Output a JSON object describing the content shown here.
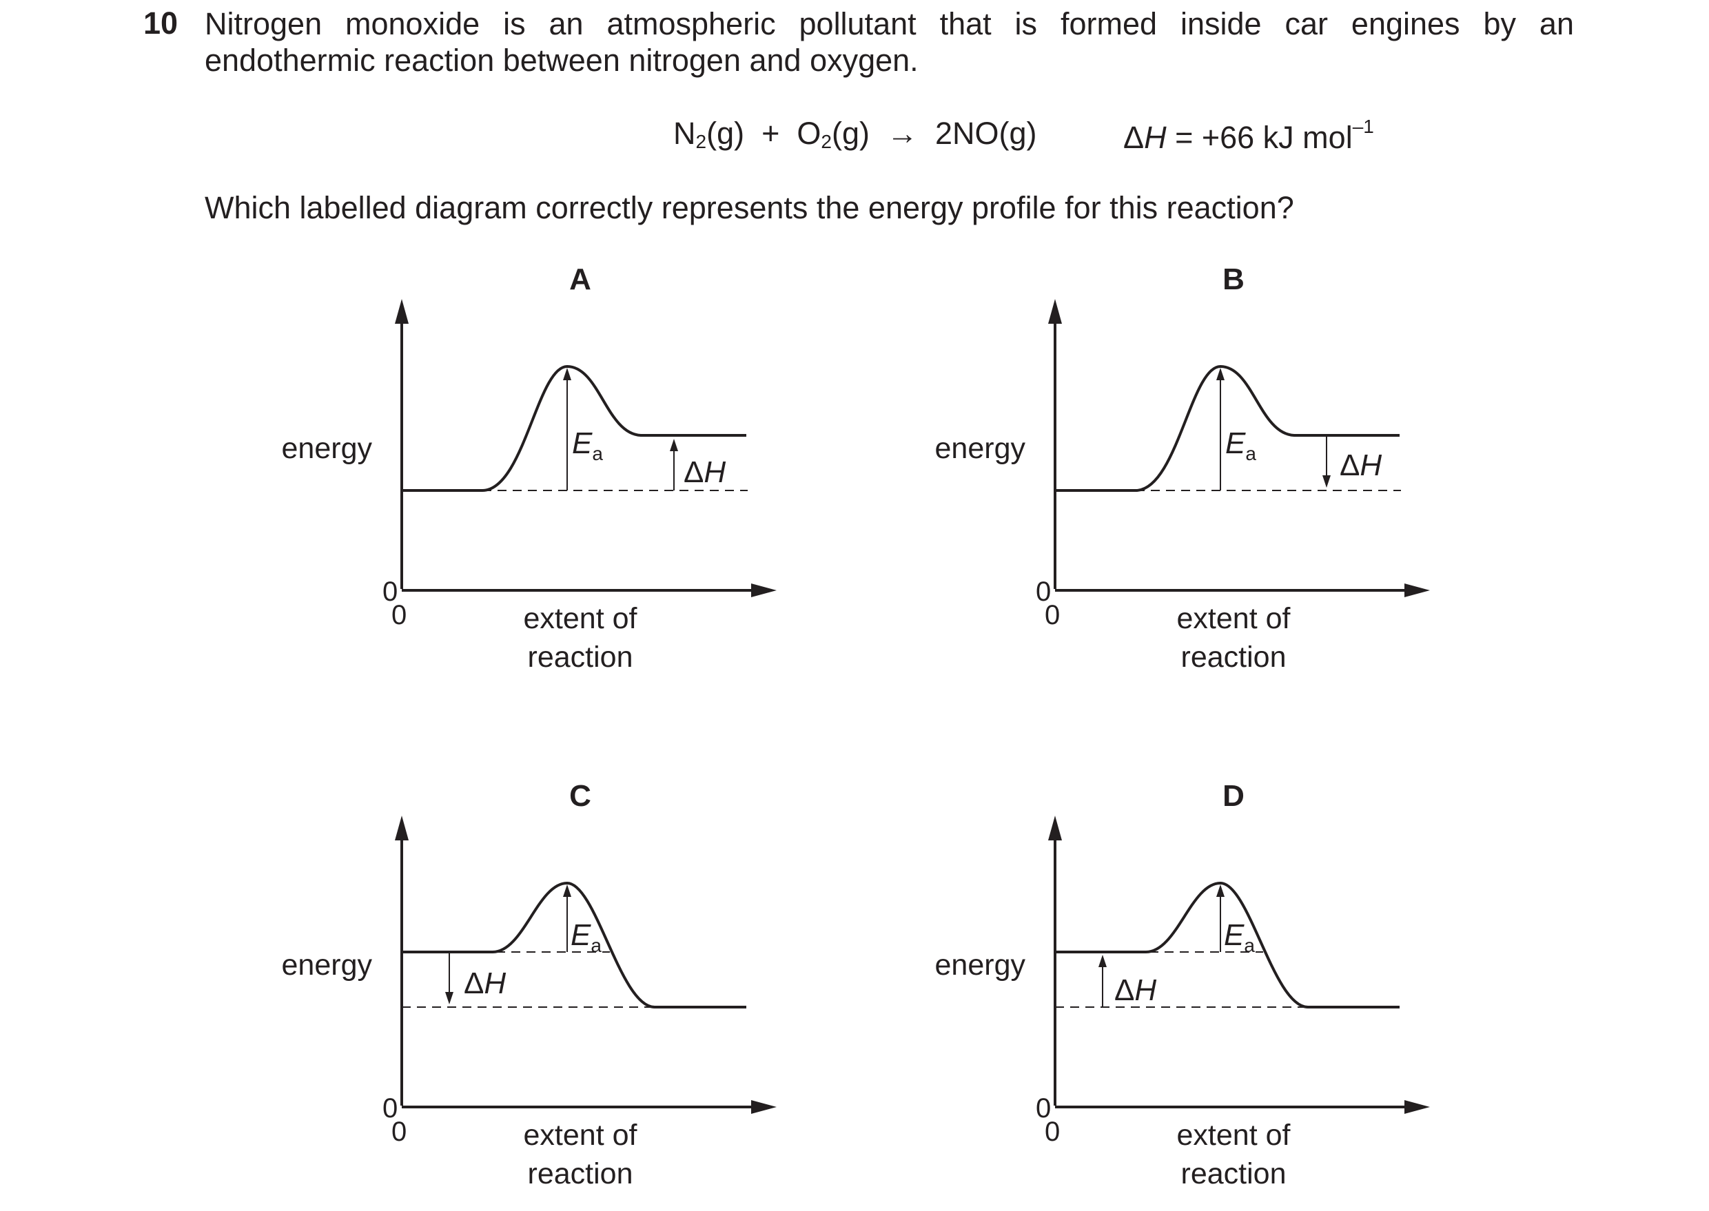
{
  "question": {
    "number": "10",
    "line1": "Nitrogen monoxide is an atmospheric pollutant that is formed inside car engines by an",
    "line2": "endothermic reaction between nitrogen and oxygen."
  },
  "equation": {
    "n2": "N",
    "n2_sub": "2",
    "n2_state": "(g)",
    "plus": "+",
    "o2": "O",
    "o2_sub": "2",
    "o2_state": "(g)",
    "arrow": "→",
    "product": "2NO(g)",
    "dh_symbol": "Δ",
    "dh_var": "H",
    "dh_value": " = +66 kJ mol",
    "dh_exp": "–1"
  },
  "prompt": "Which labelled diagram correctly represents the energy profile for this reaction?",
  "axis": {
    "y_label": "energy",
    "x_label_line1": "extent of",
    "x_label_line2": "reaction",
    "origin_y": "0",
    "origin_x": "0"
  },
  "labels": {
    "ea_var": "E",
    "ea_sub": "a",
    "dh_delta": "Δ",
    "dh_var": "H"
  },
  "options": [
    {
      "letter": "A",
      "profile": "endothermic",
      "dh_arrow": "up"
    },
    {
      "letter": "B",
      "profile": "endothermic",
      "dh_arrow": "down"
    },
    {
      "letter": "C",
      "profile": "exothermic",
      "dh_arrow": "down"
    },
    {
      "letter": "D",
      "profile": "exothermic",
      "dh_arrow": "up"
    }
  ],
  "colors": {
    "ink": "#231f20"
  }
}
